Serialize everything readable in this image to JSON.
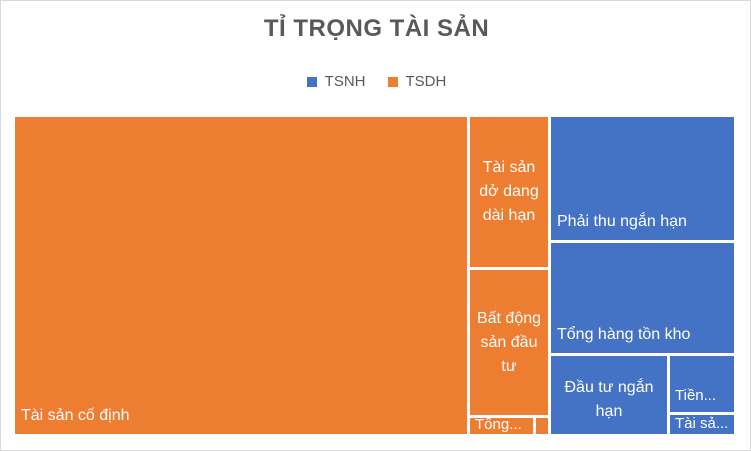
{
  "chart_data": {
    "type": "treemap",
    "title": "TỈ TRỌNG TÀI SẢN",
    "legend": [
      {
        "name": "TSNH",
        "color": "#4472c4"
      },
      {
        "name": "TSDH",
        "color": "#ed7d31"
      }
    ],
    "legend_position": "top",
    "groups": [
      {
        "name": "TSDH",
        "color": "#ed7d31",
        "items": [
          {
            "label": "Tài sản cố định",
            "value": 62.8
          },
          {
            "label": "Tài sản dở dang dài hạn",
            "value": 7.6
          },
          {
            "label": "Bất động sản đầu tư",
            "value": 7.0
          },
          {
            "label": "Tổng...",
            "value": 0.8
          },
          {
            "label": "",
            "value": 0.2
          }
        ]
      },
      {
        "name": "TSNH",
        "color": "#4472c4",
        "items": [
          {
            "label": "Phải thu ngắn hạn",
            "value": 7.5
          },
          {
            "label": "Tổng hàng tồn kho",
            "value": 6.7
          },
          {
            "label": "Đầu tư ngắn hạn",
            "value": 4.6
          },
          {
            "label": "Tiền...",
            "value": 1.7
          },
          {
            "label": "Tài sả...",
            "value": 0.8
          }
        ]
      }
    ]
  }
}
